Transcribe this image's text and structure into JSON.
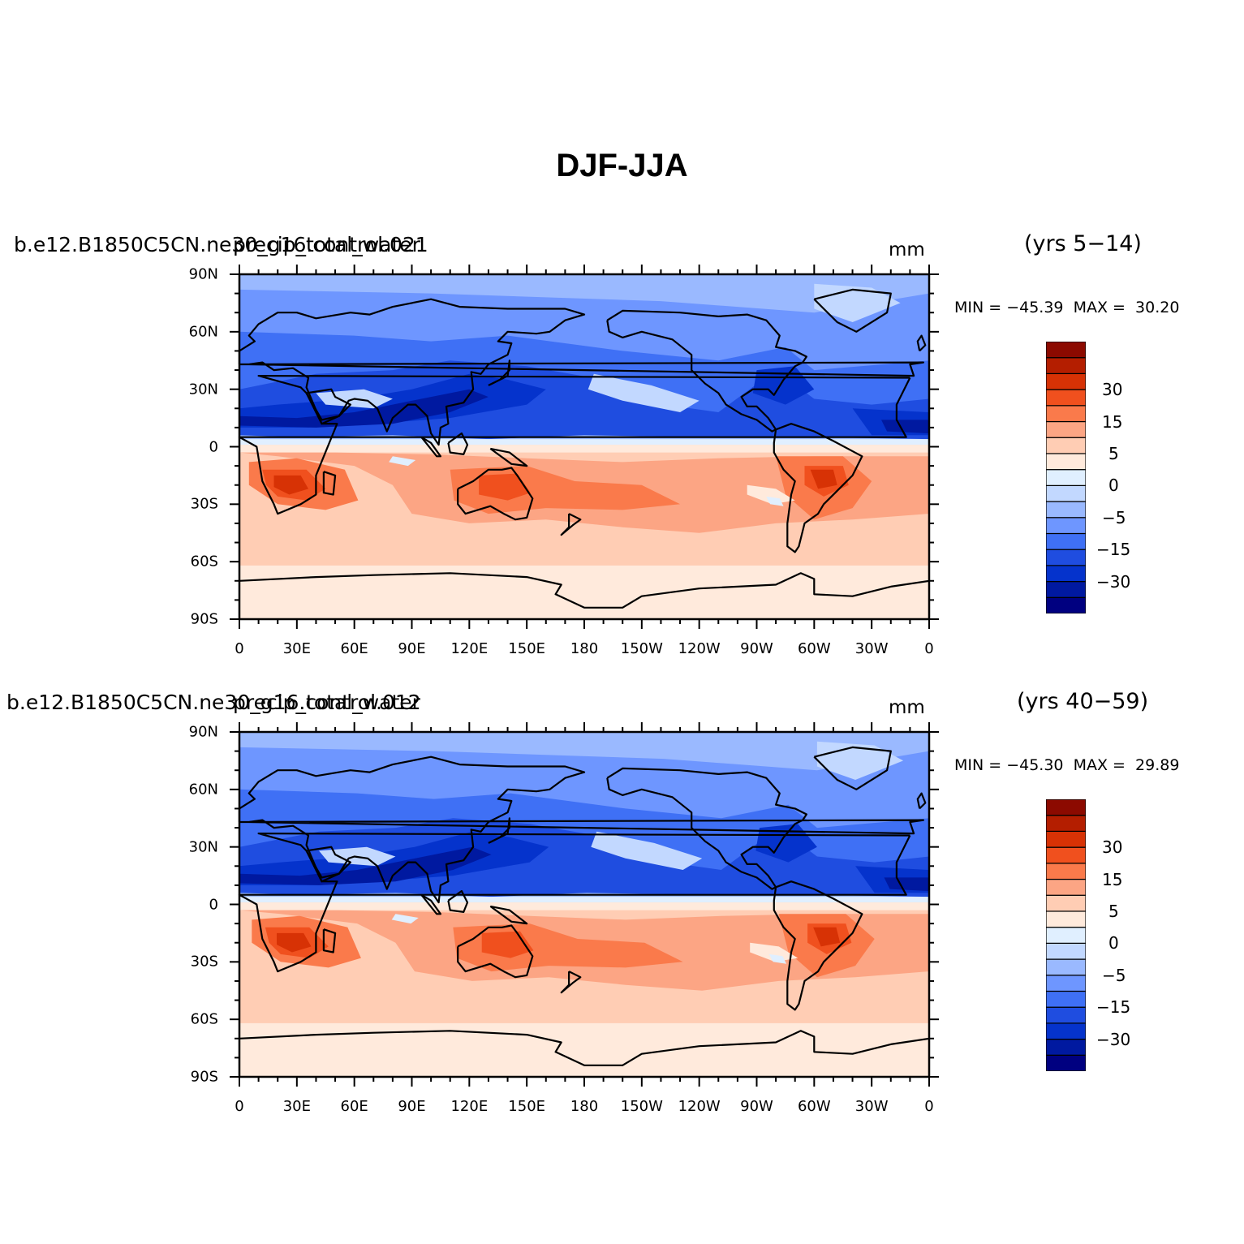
{
  "title": "DJF-JJA",
  "colorbar": {
    "colors": [
      "#000080",
      "#0019a0",
      "#0533cc",
      "#1f4de0",
      "#3f70f5",
      "#6e96ff",
      "#9ab9ff",
      "#c2d8ff",
      "#e0efff",
      "#ffeadc",
      "#ffcdb4",
      "#fca584",
      "#fa7a4b",
      "#f0501e",
      "#d73205",
      "#b41e00",
      "#8c0a00"
    ],
    "labels": [
      {
        "text": "30",
        "slot": 14
      },
      {
        "text": "15",
        "slot": 12
      },
      {
        "text": "5",
        "slot": 10
      },
      {
        "text": "0",
        "slot": 8
      },
      {
        "text": "−5",
        "slot": 6
      },
      {
        "text": "−15",
        "slot": 4
      },
      {
        "text": "−30",
        "slot": 2
      }
    ]
  },
  "axes": {
    "x_labels": [
      "0",
      "30E",
      "60E",
      "90E",
      "120E",
      "150E",
      "180",
      "150W",
      "120W",
      "90W",
      "60W",
      "30W",
      "0"
    ],
    "y_labels": [
      "90N",
      "60N",
      "30N",
      "0",
      "30S",
      "60S",
      "90S"
    ],
    "lon_range": [
      0,
      360
    ],
    "lat_range": [
      -90,
      90
    ]
  },
  "panels": [
    {
      "case_under": "b.e12.B1850C5CN.ne30_g16.control.021",
      "case_over": "precip_total_water",
      "years": "(yrs 5−14)",
      "units": "mm",
      "min_label": "MIN = −45.39  MAX =  30.20",
      "min": -45.39,
      "max": 30.2
    },
    {
      "case_under": "b.e12.B1850C5CN.ne30_g16.control.012",
      "case_over": "precip_total_water",
      "years": "(yrs 40−59)",
      "units": "mm",
      "min_label": "MIN = −45.30  MAX =  29.89",
      "min": -45.3,
      "max": 29.89
    }
  ]
}
